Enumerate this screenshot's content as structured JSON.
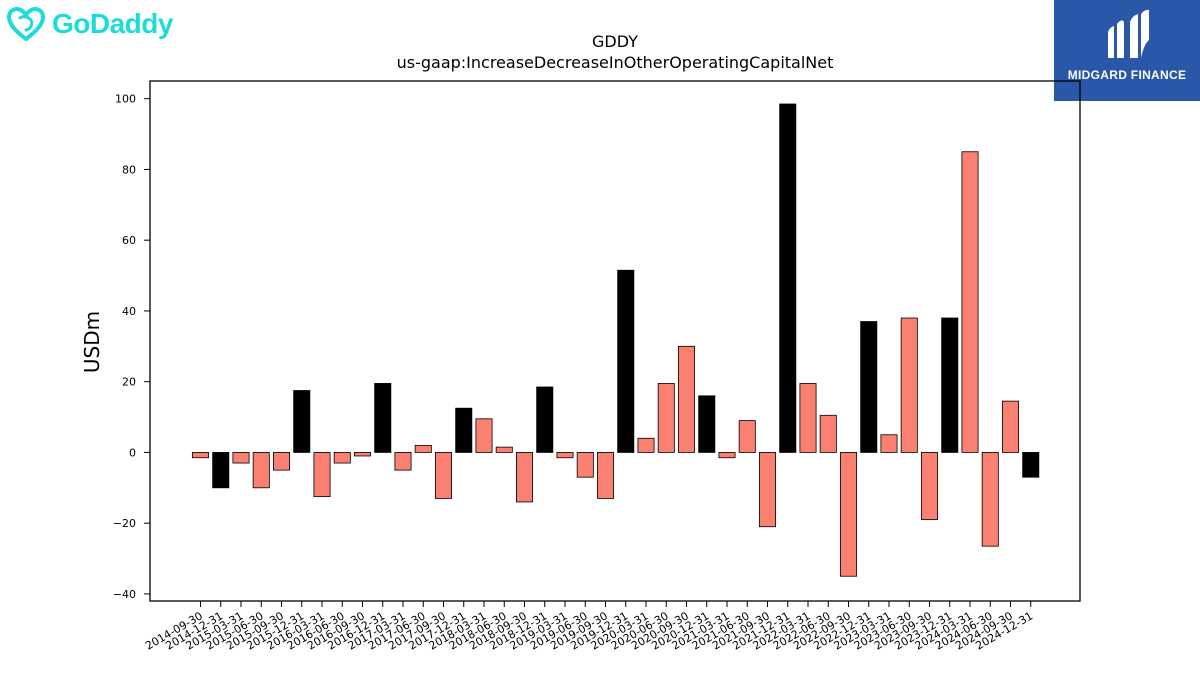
{
  "logos": {
    "left_brand": "GoDaddy",
    "right_brand": "MIDGARD FINANCE"
  },
  "colors": {
    "positive_bar": "#fa8072",
    "q4_bar": "#000000",
    "godaddy": "#1bdbdb",
    "midgard_bg": "#2b57a8"
  },
  "chart_data": {
    "type": "bar",
    "title": "GDDY",
    "subtitle": "us-gaap:IncreaseDecreaseInOtherOperatingCapitalNet",
    "xlabel": "",
    "ylabel": "USDm",
    "ylim": [
      -42,
      105
    ],
    "yticks": [
      -40,
      -20,
      0,
      20,
      40,
      60,
      80,
      100
    ],
    "ytick_labels": [
      "−40",
      "−20",
      "0",
      "20",
      "40",
      "60",
      "80",
      "100"
    ],
    "grid": false,
    "legend": "none",
    "categories": [
      "2014-09-30",
      "2014-12-31",
      "2015-03-31",
      "2015-06-30",
      "2015-09-30",
      "2015-12-31",
      "2016-03-31",
      "2016-06-30",
      "2016-09-30",
      "2016-12-31",
      "2017-03-31",
      "2017-06-30",
      "2017-09-30",
      "2017-12-31",
      "2018-03-31",
      "2018-06-30",
      "2018-09-30",
      "2018-12-31",
      "2019-03-31",
      "2019-06-30",
      "2019-09-30",
      "2019-12-31",
      "2020-03-31",
      "2020-06-30",
      "2020-09-30",
      "2020-12-31",
      "2021-03-31",
      "2021-06-30",
      "2021-09-30",
      "2021-12-31",
      "2022-03-31",
      "2022-06-30",
      "2022-09-30",
      "2022-12-31",
      "2023-03-31",
      "2023-06-30",
      "2023-09-30",
      "2023-12-31",
      "2024-03-31",
      "2024-06-30",
      "2024-09-30",
      "2024-12-31"
    ],
    "values": [
      -1.5,
      -10,
      -3,
      -10,
      -5,
      17.5,
      -12.5,
      -3,
      -1,
      19.5,
      -5,
      2,
      -13,
      12.5,
      9.5,
      1.5,
      -14,
      18.5,
      -1.5,
      -7,
      -13,
      51.5,
      4,
      19.5,
      30,
      16,
      -1.5,
      9,
      -21,
      98.5,
      19.5,
      10.5,
      -35,
      37,
      5,
      38,
      -19,
      38,
      85,
      -26.5,
      14.5,
      -7
    ],
    "bar_colors": [
      "#fa8072",
      "#000000",
      "#fa8072",
      "#fa8072",
      "#fa8072",
      "#000000",
      "#fa8072",
      "#fa8072",
      "#fa8072",
      "#000000",
      "#fa8072",
      "#fa8072",
      "#fa8072",
      "#000000",
      "#fa8072",
      "#fa8072",
      "#fa8072",
      "#000000",
      "#fa8072",
      "#fa8072",
      "#fa8072",
      "#000000",
      "#fa8072",
      "#fa8072",
      "#fa8072",
      "#000000",
      "#fa8072",
      "#fa8072",
      "#fa8072",
      "#000000",
      "#fa8072",
      "#fa8072",
      "#fa8072",
      "#000000",
      "#fa8072",
      "#fa8072",
      "#fa8072",
      "#000000",
      "#fa8072",
      "#fa8072",
      "#fa8072",
      "#000000"
    ]
  }
}
